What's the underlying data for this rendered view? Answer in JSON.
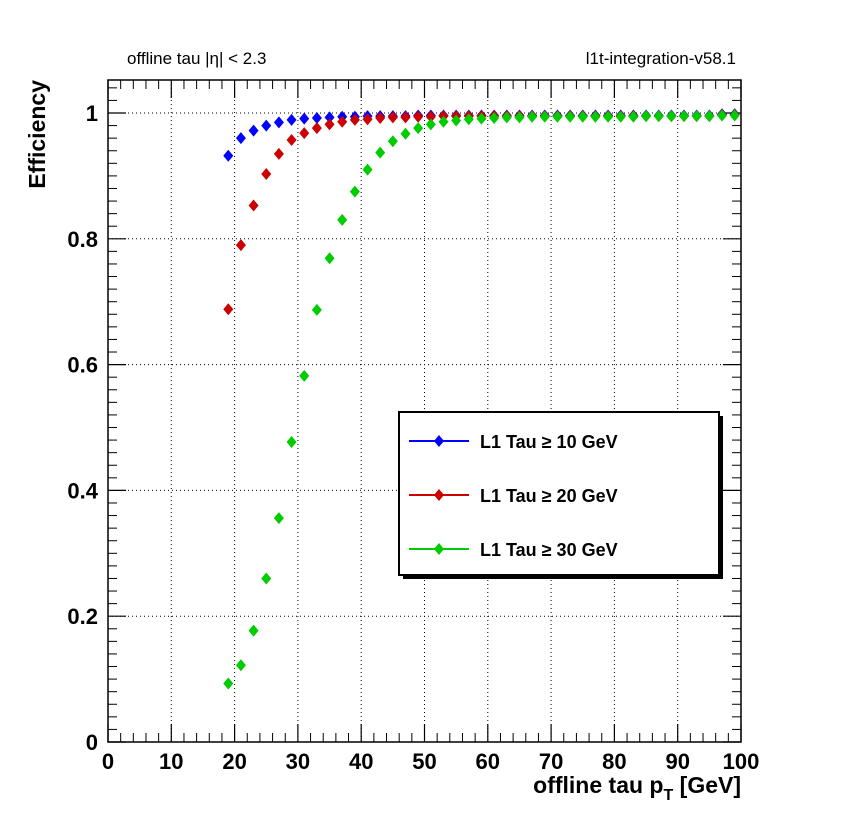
{
  "header": {
    "left": "offline tau |η| < 2.3",
    "right": "l1t-integration-v58.1"
  },
  "chart_data": {
    "type": "scatter",
    "xlabel": "offline tau p",
    "xlabel_sub": "T",
    "xlabel_unit": "[GeV]",
    "ylabel": "Efficiency",
    "xlim": [
      0,
      100
    ],
    "ylim": [
      0,
      1.05
    ],
    "xticks": [
      0,
      10,
      20,
      30,
      40,
      50,
      60,
      70,
      80,
      90,
      100
    ],
    "xtick_labels": [
      "0",
      "10",
      "20",
      "30",
      "40",
      "50",
      "60",
      "70",
      "80",
      "90",
      "100"
    ],
    "yticks": [
      0,
      0.2,
      0.4,
      0.6,
      0.8,
      1
    ],
    "ytick_labels": [
      "0",
      "0.2",
      "0.4",
      "0.6",
      "0.8",
      "1"
    ],
    "grid": true,
    "legend_position": "right-middle",
    "x": [
      19,
      21,
      23,
      25,
      27,
      29,
      31,
      33,
      35,
      37,
      39,
      41,
      43,
      45,
      47,
      49,
      51,
      53,
      55,
      57,
      59,
      61,
      63,
      65,
      67,
      69,
      71,
      73,
      75,
      77,
      79,
      81,
      83,
      85,
      87,
      89,
      91,
      93,
      95,
      97,
      99
    ],
    "series": [
      {
        "name": "L1 Tau ≥ 10 GeV",
        "color": "#0000ff",
        "values": [
          0.932,
          0.96,
          0.972,
          0.98,
          0.985,
          0.989,
          0.991,
          0.992,
          0.993,
          0.994,
          0.994,
          0.995,
          0.995,
          0.995,
          0.995,
          0.996,
          0.996,
          0.996,
          0.996,
          0.996,
          0.996,
          0.996,
          0.996,
          0.996,
          0.996,
          0.996,
          0.996,
          0.996,
          0.996,
          0.996,
          0.996,
          0.996,
          0.996,
          0.996,
          0.996,
          0.996,
          0.996,
          0.996,
          0.996,
          0.998,
          0.998
        ]
      },
      {
        "name": "L1 Tau ≥ 20 GeV",
        "color": "#cc0000",
        "values": [
          0.688,
          0.79,
          0.853,
          0.903,
          0.935,
          0.957,
          0.968,
          0.976,
          0.982,
          0.986,
          0.989,
          0.99,
          0.992,
          0.993,
          0.993,
          0.994,
          0.994,
          0.995,
          0.995,
          0.995,
          0.995,
          0.995,
          0.995,
          0.995,
          0.995,
          0.995,
          0.995,
          0.995,
          0.995,
          0.995,
          0.995,
          0.995,
          0.995,
          0.995,
          0.995,
          0.995,
          0.995,
          0.995,
          0.995,
          0.997,
          0.997
        ]
      },
      {
        "name": "L1 Tau ≥ 30 GeV",
        "color": "#00cc00",
        "values": [
          0.093,
          0.122,
          0.177,
          0.26,
          0.356,
          0.477,
          0.582,
          0.687,
          0.769,
          0.83,
          0.875,
          0.91,
          0.937,
          0.955,
          0.967,
          0.976,
          0.982,
          0.986,
          0.988,
          0.99,
          0.991,
          0.992,
          0.993,
          0.993,
          0.994,
          0.994,
          0.994,
          0.994,
          0.994,
          0.994,
          0.994,
          0.994,
          0.994,
          0.995,
          0.995,
          0.995,
          0.995,
          0.995,
          0.995,
          0.996,
          0.996
        ]
      }
    ]
  }
}
